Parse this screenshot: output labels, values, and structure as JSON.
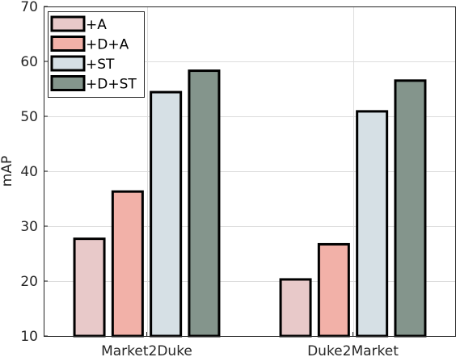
{
  "chart_data": {
    "type": "bar",
    "title": "",
    "xlabel": "",
    "ylabel": "mAP",
    "ylim": [
      10,
      70
    ],
    "yticks": [
      10,
      20,
      30,
      40,
      50,
      60,
      70
    ],
    "grid": true,
    "legend_position": "top-left",
    "categories": [
      "Market2Duke",
      "Duke2Market"
    ],
    "series": [
      {
        "name": "+A",
        "color": "#e8c9c9",
        "values": [
          27.7,
          20.3
        ]
      },
      {
        "name": "+D+A",
        "color": "#f2b1a8",
        "values": [
          36.3,
          26.7
        ]
      },
      {
        "name": "+ST",
        "color": "#d6e0e5",
        "values": [
          54.4,
          50.9
        ]
      },
      {
        "name": "+D+ST",
        "color": "#84958c",
        "values": [
          58.3,
          56.5
        ]
      }
    ]
  }
}
